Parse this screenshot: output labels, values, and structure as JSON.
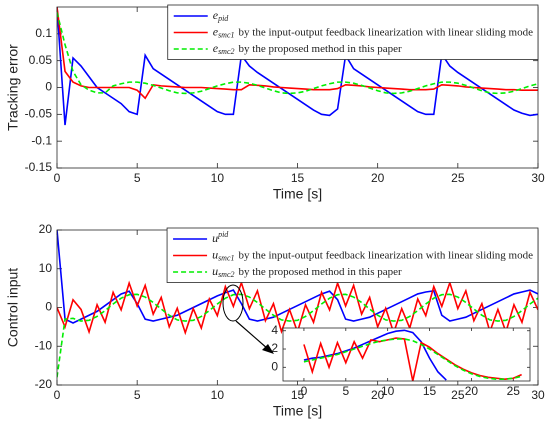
{
  "chart_data": [
    {
      "type": "line",
      "xlabel": "Time [s]",
      "ylabel": "Tracking error",
      "xlim": [
        0,
        30
      ],
      "xticks": [
        0,
        5,
        10,
        15,
        20,
        25,
        30
      ],
      "ylim": [
        -0.15,
        0.15
      ],
      "yticks": [
        -0.15,
        -0.1,
        -0.05,
        0,
        0.05,
        0.1
      ],
      "legend": "upper right",
      "x": [
        0,
        0.5,
        1,
        1.5,
        2,
        2.5,
        3,
        3.5,
        4,
        4.5,
        5,
        5.5,
        6,
        6.5,
        7,
        7.5,
        8,
        8.5,
        9,
        9.5,
        10,
        10.5,
        11,
        11.5,
        12,
        12.5,
        13,
        13.5,
        14,
        14.5,
        15,
        15.5,
        16,
        16.5,
        17,
        17.5,
        18,
        18.5,
        19,
        19.5,
        20,
        20.5,
        21,
        21.5,
        22,
        22.5,
        23,
        23.5,
        24,
        24.5,
        25,
        25.5,
        26,
        26.5,
        27,
        27.5,
        28,
        28.5,
        29,
        29.5,
        30
      ],
      "series": [
        {
          "symbol": "e",
          "subscript": "pid",
          "color": "#0000ff",
          "dashed": false,
          "values": [
            0.15,
            -0.07,
            0.055,
            0.04,
            0.02,
            0,
            -0.01,
            -0.02,
            -0.03,
            -0.045,
            -0.05,
            0.06,
            0.035,
            0.025,
            0.015,
            0.005,
            -0.005,
            -0.015,
            -0.025,
            -0.035,
            -0.045,
            -0.05,
            -0.05,
            0.06,
            0.04,
            0.028,
            0.018,
            0.008,
            -0.002,
            -0.012,
            -0.022,
            -0.032,
            -0.042,
            -0.05,
            -0.052,
            -0.04,
            0.06,
            0.035,
            0.025,
            0.015,
            0.005,
            -0.005,
            -0.015,
            -0.025,
            -0.035,
            -0.045,
            -0.05,
            -0.05,
            0.062,
            0.04,
            0.028,
            0.018,
            0.008,
            -0.002,
            -0.012,
            -0.022,
            -0.032,
            -0.042,
            -0.048,
            -0.052,
            -0.05
          ]
        },
        {
          "symbol": "e",
          "subscript": "smc1",
          "description": "by the input-output feedback linearization with linear sliding mode",
          "color": "#ff0000",
          "dashed": false,
          "values": [
            0.15,
            0.03,
            0.01,
            0.003,
            0,
            0,
            0,
            0,
            0,
            0,
            -0.005,
            -0.02,
            0.005,
            0.003,
            0.002,
            0.001,
            0,
            0,
            0,
            -0.001,
            -0.002,
            -0.003,
            -0.004,
            -0.004,
            0.005,
            0.004,
            0.003,
            0.001,
            0,
            -0.001,
            -0.002,
            -0.003,
            -0.004,
            -0.004,
            -0.004,
            -0.002,
            0.005,
            0.004,
            0.003,
            0.001,
            0,
            -0.001,
            -0.002,
            -0.003,
            -0.004,
            -0.004,
            -0.004,
            -0.003,
            0.005,
            0.004,
            0.003,
            0.001,
            0,
            -0.001,
            -0.002,
            -0.003,
            -0.004,
            -0.004,
            -0.005,
            -0.005,
            -0.005
          ]
        },
        {
          "symbol": "e",
          "subscript": "smc2",
          "description": "by the proposed method in this paper",
          "color": "#00ee00",
          "dashed": true,
          "values": [
            0.14,
            0.08,
            0.03,
            0.005,
            -0.005,
            -0.01,
            -0.01,
            0.003,
            0.007,
            0.01,
            0.01,
            0.008,
            0.004,
            -0.001,
            -0.006,
            -0.01,
            -0.011,
            -0.01,
            -0.007,
            -0.002,
            0.003,
            0.007,
            0.01,
            0.01,
            0.008,
            0.004,
            -0.001,
            -0.006,
            -0.01,
            -0.011,
            -0.01,
            -0.007,
            -0.002,
            0.003,
            0.007,
            0.01,
            0.01,
            0.008,
            0.004,
            -0.001,
            -0.006,
            -0.01,
            -0.011,
            -0.01,
            -0.007,
            -0.002,
            0.003,
            0.007,
            0.01,
            0.01,
            0.008,
            0.004,
            -0.001,
            -0.006,
            -0.01,
            -0.011,
            -0.01,
            -0.007,
            -0.002,
            0.003,
            0.007
          ]
        }
      ]
    },
    {
      "type": "line",
      "xlabel": "Time [s]",
      "ylabel": "Control input",
      "xlim": [
        0,
        30
      ],
      "xticks": [
        0,
        5,
        10,
        15,
        20,
        25,
        30
      ],
      "ylim": [
        -20,
        20
      ],
      "yticks": [
        -20,
        -10,
        0,
        10,
        20
      ],
      "legend": "upper right",
      "x": [
        0,
        0.5,
        1,
        1.5,
        2,
        2.5,
        3,
        3.5,
        4,
        4.5,
        5,
        5.5,
        6,
        6.5,
        7,
        7.5,
        8,
        8.5,
        9,
        9.5,
        10,
        10.5,
        11,
        11.5,
        12,
        12.5,
        13,
        13.5,
        14,
        14.5,
        15,
        15.5,
        16,
        16.5,
        17,
        17.5,
        18,
        18.5,
        19,
        19.5,
        20,
        20.5,
        21,
        21.5,
        22,
        22.5,
        23,
        23.5,
        24,
        24.5,
        25,
        25.5,
        26,
        26.5,
        27,
        27.5,
        28,
        28.5,
        29,
        29.5,
        30
      ],
      "series": [
        {
          "symbol": "u",
          "superscript": "pid",
          "color": "#0000ff",
          "dashed": false,
          "values": [
            20,
            -3,
            -4,
            -3,
            -2,
            -1,
            0.5,
            2,
            3.5,
            4.2,
            1,
            -3,
            -3.5,
            -3,
            -2.5,
            -2,
            -1,
            0,
            1,
            2,
            3,
            3.8,
            4.5,
            1,
            -3,
            -3.5,
            -3,
            -2.5,
            -1.5,
            -0.5,
            0.5,
            1.5,
            2.5,
            3.5,
            4.2,
            2,
            -3,
            -3.5,
            -3,
            -2.5,
            -1.5,
            -0.5,
            0.5,
            1.5,
            2.5,
            3.5,
            4,
            4.3,
            -2,
            -3.5,
            -3,
            -2.5,
            -1.5,
            -0.5,
            0.5,
            1.5,
            2.5,
            3.5,
            4,
            4.5,
            3.5
          ]
        },
        {
          "symbol": "u",
          "subscript": "smc1",
          "description": "by the input-output feedback linearization with linear sliding mode",
          "color": "#ff0000",
          "dashed": false,
          "values": [
            0,
            -5,
            2,
            -0.5,
            -6.3,
            0.7,
            -3.8,
            3.9,
            -0.6,
            6.3,
            0.4,
            5.7,
            -1.7,
            2.6,
            -5.0,
            -0.2,
            -6.5,
            -0.3,
            -5.3,
            2.2,
            -2.1,
            5.4,
            0.3,
            6.4,
            -0.3,
            4.3,
            -3.4,
            1.0,
            -6.2,
            -0.5,
            -6.3,
            0.7,
            -3.8,
            3.9,
            -0.6,
            6.3,
            0.4,
            5.7,
            -1.7,
            2.6,
            -5.0,
            -0.2,
            -6.5,
            -0.3,
            -5.3,
            2.2,
            -2.1,
            5.4,
            0.3,
            6.4,
            -0.3,
            4.3,
            -3.4,
            1.0,
            -6.2,
            -0.5,
            -6.3,
            0.7,
            -3.8,
            3.9,
            -0.6
          ]
        },
        {
          "symbol": "u",
          "subscript": "smc2",
          "description": "by the proposed method in this paper",
          "color": "#00ee00",
          "dashed": true,
          "values": [
            -18,
            -3,
            -2.8,
            -3.5,
            -3.3,
            -2.3,
            -0.8,
            0.9,
            2.4,
            3.3,
            3.4,
            2.7,
            1.3,
            -0.4,
            -2.0,
            -3.2,
            -3.5,
            -3.3,
            -2.3,
            -0.8,
            0.9,
            2.4,
            3.3,
            3.4,
            2.7,
            1.3,
            -0.4,
            -2.0,
            -3.2,
            -3.5,
            -3.3,
            -2.3,
            -0.8,
            0.9,
            2.4,
            3.3,
            3.4,
            2.7,
            1.3,
            -0.4,
            -2.0,
            -3.2,
            -3.5,
            -3.3,
            -2.3,
            -0.8,
            0.9,
            2.4,
            3.3,
            3.4,
            2.7,
            1.3,
            -0.4,
            -2.0,
            -3.2,
            -3.5,
            -3.3,
            -2.3,
            -0.8,
            0.9,
            2.4
          ]
        }
      ]
    },
    {
      "type": "line",
      "xlim": [
        -2.5,
        27
      ],
      "xticks": [
        0,
        5,
        10,
        15,
        20,
        25
      ],
      "ylim": [
        -1.5,
        4.3
      ],
      "yticks": [
        0,
        2,
        4
      ],
      "x": [
        0,
        1,
        2,
        3,
        4,
        5,
        6,
        7,
        8,
        9,
        10,
        11,
        12,
        13,
        14,
        15,
        16,
        17,
        18,
        19,
        20,
        21,
        22,
        23,
        24,
        25,
        26
      ],
      "series": [
        {
          "color": "#0000ff",
          "dashed": false,
          "values": [
            0.8,
            1,
            1.1,
            1.3,
            1.5,
            1.8,
            2.1,
            2.5,
            2.9,
            3.3,
            3.7,
            3.95,
            4.05,
            3.8,
            2.8,
            1,
            -0.5,
            -1.4,
            null,
            null,
            null,
            null,
            null,
            null,
            null,
            null,
            null
          ]
        },
        {
          "color": "#ff0000",
          "dashed": false,
          "values": [
            2.5,
            -0.5,
            2.6,
            0,
            2.7,
            0.5,
            2.8,
            1,
            3,
            2.8,
            3,
            3.2,
            3.1,
            -1.5,
            2.7,
            2.2,
            1.5,
            0.9,
            0.3,
            -0.2,
            -0.6,
            -0.9,
            -1.1,
            -1.2,
            -1.3,
            -1.2,
            -0.8
          ]
        },
        {
          "color": "#00ee00",
          "dashed": true,
          "values": [
            0.6,
            0.8,
            1.0,
            1.2,
            1.4,
            1.7,
            2.0,
            2.3,
            2.6,
            2.85,
            3.0,
            3.1,
            3.1,
            2.9,
            2.5,
            2.0,
            1.4,
            0.8,
            0.2,
            -0.3,
            -0.7,
            -1.0,
            -1.2,
            -1.3,
            -1.3,
            -1.2,
            -1.0
          ]
        }
      ]
    }
  ]
}
